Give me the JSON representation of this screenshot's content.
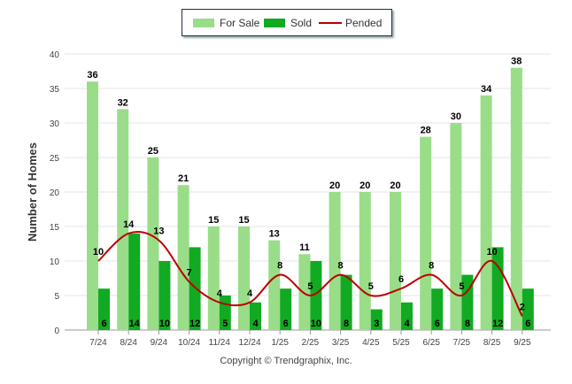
{
  "chart_data": {
    "type": "bar",
    "title": "",
    "xlabel": "",
    "ylabel": "Number of Homes",
    "ylim": [
      0,
      40
    ],
    "yticks": [
      0,
      5,
      10,
      15,
      20,
      25,
      30,
      35,
      40
    ],
    "grid": true,
    "legend_position": "top-center",
    "categories": [
      "7/24",
      "8/24",
      "9/24",
      "10/24",
      "11/24",
      "12/24",
      "1/25",
      "2/25",
      "3/25",
      "4/25",
      "5/25",
      "6/25",
      "7/25",
      "8/25",
      "9/25"
    ],
    "series": [
      {
        "name": "For Sale",
        "kind": "bar",
        "color": "#99dd88",
        "values": [
          36,
          32,
          25,
          21,
          15,
          15,
          13,
          11,
          20,
          20,
          20,
          28,
          30,
          34,
          38
        ]
      },
      {
        "name": "Sold",
        "kind": "bar",
        "color": "#11aa22",
        "values": [
          6,
          14,
          10,
          12,
          5,
          4,
          6,
          10,
          8,
          3,
          4,
          6,
          8,
          12,
          6
        ]
      },
      {
        "name": "Pended",
        "kind": "line",
        "color": "#bb0000",
        "values": [
          10,
          14,
          13,
          7,
          4,
          4,
          8,
          5,
          8,
          5,
          6,
          8,
          5,
          10,
          2
        ]
      }
    ]
  },
  "legend": {
    "items": [
      {
        "label": "For Sale",
        "color": "#99dd88"
      },
      {
        "label": "Sold",
        "color": "#11aa22"
      },
      {
        "label": "Pended",
        "color": "#bb0000"
      }
    ]
  },
  "footer": {
    "copyright": "Copyright © Trendgraphix, Inc."
  }
}
